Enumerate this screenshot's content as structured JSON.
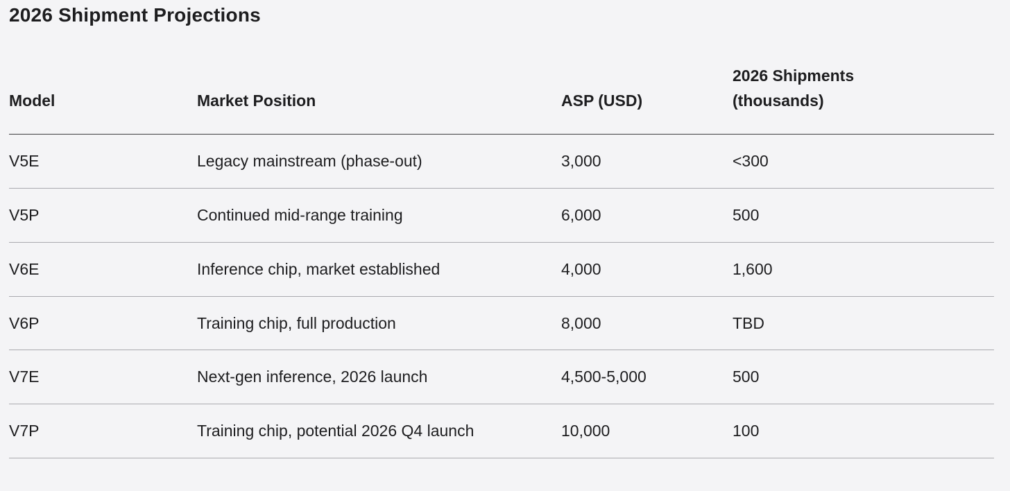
{
  "title": "2026 Shipment Projections",
  "colors": {
    "background": "#f4f4f6",
    "text": "#1d1d1f",
    "header_rule": "#3f3f41",
    "row_rule": "#a9a9ae"
  },
  "table": {
    "headers": [
      "Model",
      "Market Position",
      "ASP (USD)",
      "2026 Shipments (thousands)"
    ],
    "rows": [
      [
        "V5E",
        "Legacy mainstream (phase-out)",
        "3,000",
        "<300"
      ],
      [
        "V5P",
        "Continued mid-range training",
        "6,000",
        "500"
      ],
      [
        "V6E",
        "Inference chip, market established",
        "4,000",
        "1,600"
      ],
      [
        "V6P",
        "Training chip, full production",
        "8,000",
        "TBD"
      ],
      [
        "V7E",
        "Next-gen inference, 2026 launch",
        "4,500-5,000",
        "500"
      ],
      [
        "V7P",
        "Training chip, potential 2026 Q4 launch",
        "10,000",
        "100"
      ]
    ]
  }
}
